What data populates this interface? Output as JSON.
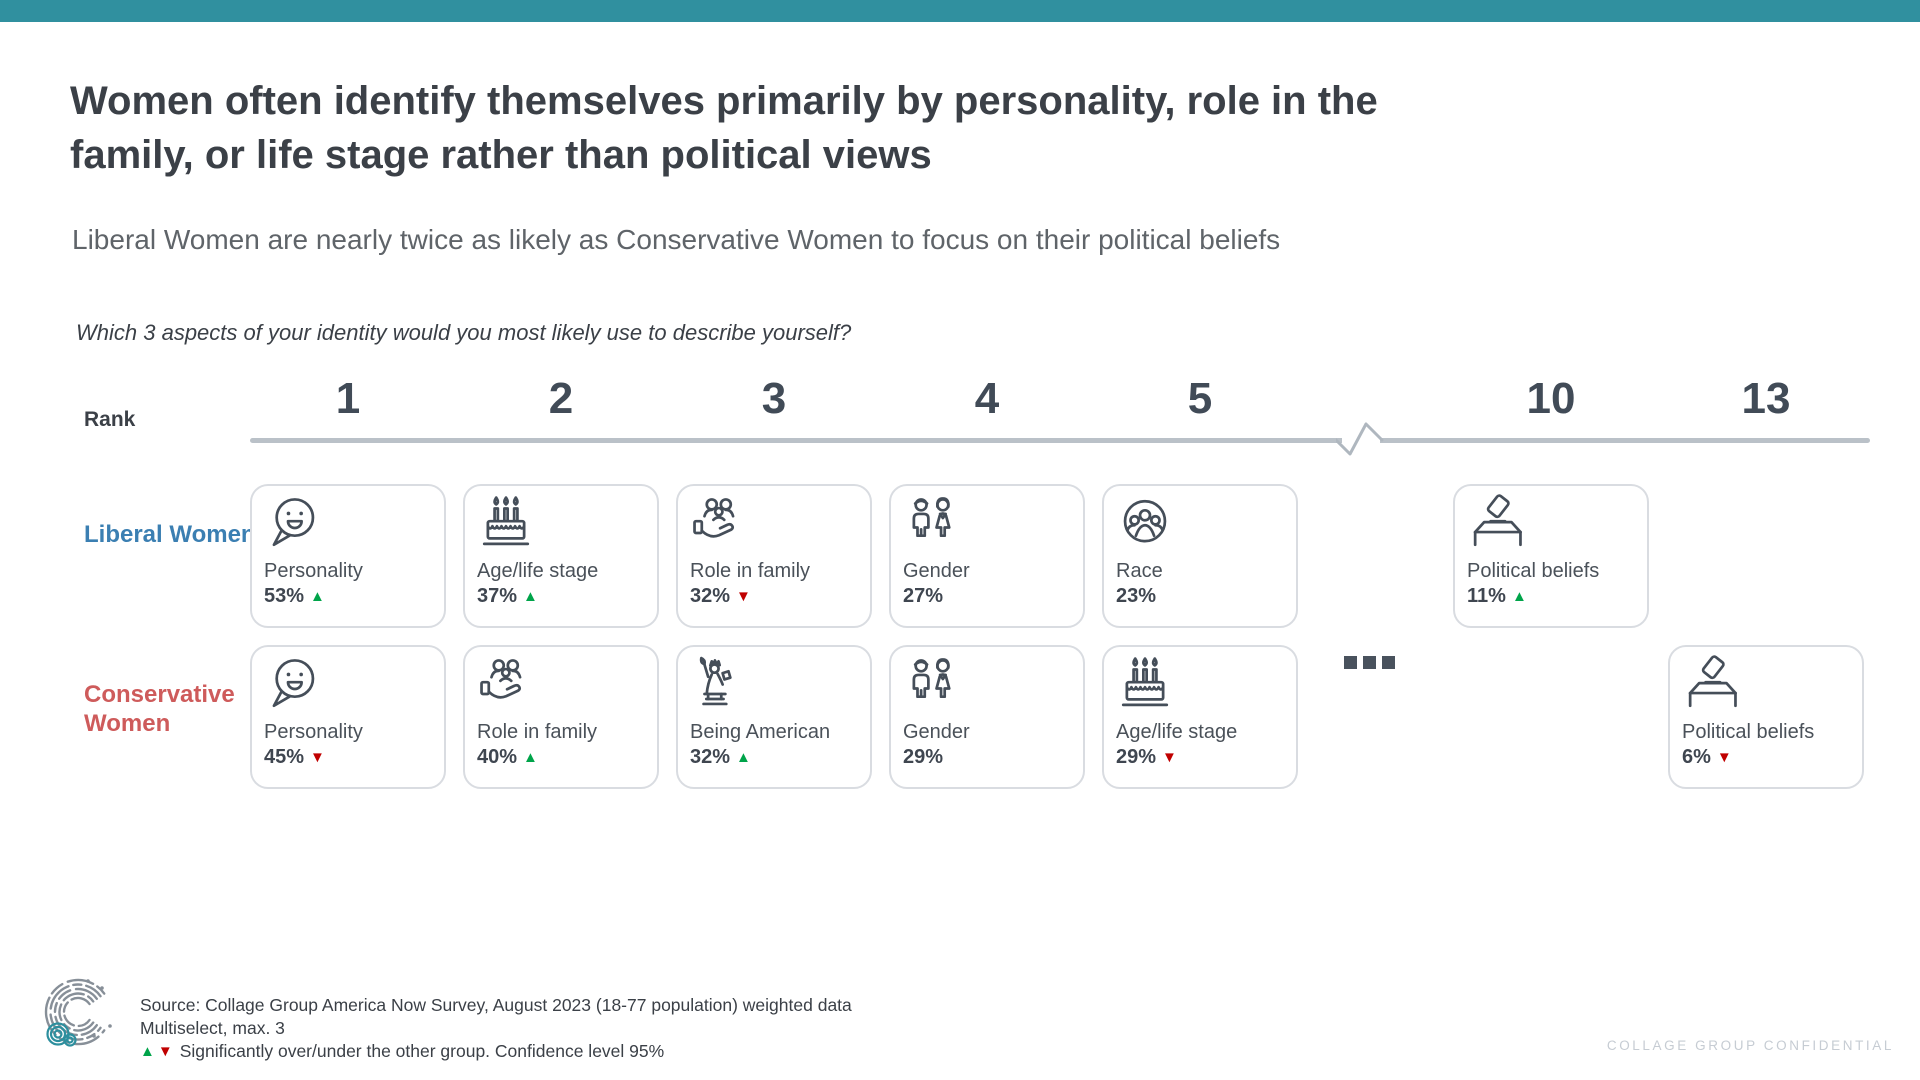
{
  "colors": {
    "accent_teal": "#30909F",
    "liberal_blue": "#3B7FB2",
    "conservative_red": "#CE5B5B",
    "up_green": "#00A44A",
    "down_red": "#C00000",
    "axis_gray": "#BAC1C8"
  },
  "header": {
    "title_lines": [
      "Women often identify themselves primarily by personality, role in the",
      "family, or life stage rather than political views"
    ],
    "subtitle": "Liberal Women are nearly twice as likely as Conservative Women to focus on their political beliefs"
  },
  "chart_data": {
    "type": "table",
    "title": "Ranked identity aspects by group",
    "question": "Which 3 aspects of your identity would you most likely use to describe yourself?",
    "rank_axis_label": "Rank",
    "rank_axis": [
      "1",
      "2",
      "3",
      "4",
      "5",
      "10",
      "13"
    ],
    "axis_break_between": [
      "5",
      "10"
    ],
    "more_ranks_indicator": "...",
    "significance_up_symbol": "▲",
    "significance_down_symbol": "▼",
    "series": [
      {
        "name": "Liberal Women",
        "color_key": "liberal_blue",
        "items": [
          {
            "rank": "1",
            "label": "Personality",
            "value": 53,
            "value_label": "53%",
            "significance": "up",
            "icon": "speech-bubble-smiley-icon"
          },
          {
            "rank": "2",
            "label": "Age/life stage",
            "value": 37,
            "value_label": "37%",
            "significance": "up",
            "icon": "birthday-cake-icon"
          },
          {
            "rank": "3",
            "label": "Role in family",
            "value": 32,
            "value_label": "32%",
            "significance": "down",
            "icon": "hand-holding-family-icon"
          },
          {
            "rank": "4",
            "label": "Gender",
            "value": 27,
            "value_label": "27%",
            "significance": null,
            "icon": "man-woman-icon"
          },
          {
            "rank": "5",
            "label": "Race",
            "value": 23,
            "value_label": "23%",
            "significance": null,
            "icon": "people-in-circle-icon"
          },
          {
            "rank": "10",
            "label": "Political beliefs",
            "value": 11,
            "value_label": "11%",
            "significance": "up",
            "icon": "ballot-box-icon"
          }
        ]
      },
      {
        "name": "Conservative Women",
        "color_key": "conservative_red",
        "items": [
          {
            "rank": "1",
            "label": "Personality",
            "value": 45,
            "value_label": "45%",
            "significance": "down",
            "icon": "speech-bubble-smiley-icon"
          },
          {
            "rank": "2",
            "label": "Role in family",
            "value": 40,
            "value_label": "40%",
            "significance": "up",
            "icon": "hand-holding-family-icon"
          },
          {
            "rank": "3",
            "label": "Being American",
            "value": 32,
            "value_label": "32%",
            "significance": "up",
            "icon": "statue-of-liberty-icon"
          },
          {
            "rank": "4",
            "label": "Gender",
            "value": 29,
            "value_label": "29%",
            "significance": null,
            "icon": "man-woman-icon"
          },
          {
            "rank": "5",
            "label": "Age/life stage",
            "value": 29,
            "value_label": "29%",
            "significance": "down",
            "icon": "birthday-cake-icon"
          },
          {
            "rank": "13",
            "label": "Political beliefs",
            "value": 6,
            "value_label": "6%",
            "significance": "down",
            "icon": "ballot-box-icon"
          }
        ]
      }
    ]
  },
  "footer": {
    "source_line1": "Source: Collage Group America Now Survey, August 2023 (18-77 population) weighted data",
    "source_line2": "Multiselect, max. 3",
    "legend_up_symbol": "▲",
    "legend_down_symbol": "▼",
    "legend_text": "Significantly over/under the other group. Confidence level 95%",
    "confidential": "COLLAGE GROUP CONFIDENTIAL"
  }
}
